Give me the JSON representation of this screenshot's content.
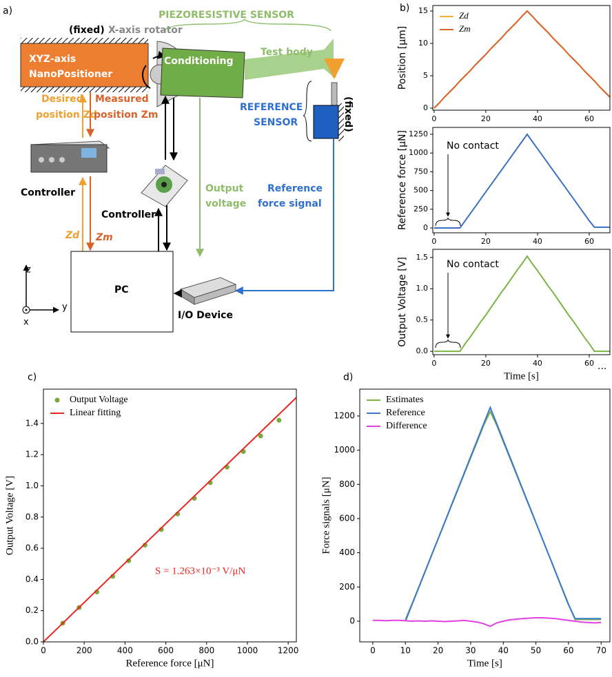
{
  "diagram": {
    "label": "a)",
    "fixed_top": "(fixed)",
    "rotator": "X-axis rotator",
    "sensor": "PIEZORESISTIVE SENSOR",
    "positioner": [
      "XYZ-axis",
      "NanoPositioner"
    ],
    "conditioning": "Conditioning",
    "test_body": "Test body",
    "reference_sensor": [
      "REFERENCE",
      "SENSOR"
    ],
    "fixed_right": "(fixed)",
    "desired": [
      "Desired",
      "position Zd"
    ],
    "measured": [
      "Measured",
      "position Zm"
    ],
    "controller_1": "Controller",
    "controller_2": "Controller",
    "output_voltage": [
      "Output",
      "voltage"
    ],
    "reference_signal": [
      "Reference",
      "force signal"
    ],
    "zd": "Zd",
    "zm": "Zm",
    "pc": "PC",
    "io_device": "I/O Device",
    "axes": [
      "z",
      "y",
      "x"
    ]
  },
  "chart_data": [
    {
      "type": "line",
      "label": "b)",
      "y_label": "Position [μm]",
      "legend": "upper left",
      "x": [
        0,
        2,
        4,
        6,
        8,
        10,
        12,
        14,
        16,
        18,
        20,
        22,
        24,
        26,
        28,
        30,
        32,
        34,
        36,
        38,
        40,
        42,
        44,
        46,
        48,
        50,
        52,
        54,
        56,
        58,
        60,
        62,
        64,
        66,
        68
      ],
      "series": [
        {
          "name": "Zd",
          "color": "#f0b030",
          "values": [
            0,
            0.8,
            1.7,
            2.5,
            3.3,
            4.2,
            5,
            5.8,
            6.7,
            7.5,
            8.3,
            9.2,
            10,
            10.8,
            11.7,
            12.5,
            13.3,
            14.2,
            15,
            14.2,
            13.3,
            12.5,
            11.7,
            10.8,
            10,
            9.2,
            8.3,
            7.5,
            6.7,
            5.8,
            5,
            4.2,
            3.3,
            2.5,
            1.7
          ]
        },
        {
          "name": "Zm",
          "color": "#d9622b",
          "values": [
            0,
            0.8,
            1.7,
            2.5,
            3.3,
            4.2,
            5,
            5.8,
            6.7,
            7.5,
            8.3,
            9.2,
            10,
            10.8,
            11.7,
            12.5,
            13.3,
            14.2,
            15,
            14.2,
            13.3,
            12.5,
            11.7,
            10.8,
            10,
            9.2,
            8.3,
            7.5,
            6.7,
            5.8,
            5,
            4.2,
            3.3,
            2.5,
            1.7
          ]
        }
      ],
      "xlim": [
        -0.5,
        68
      ],
      "ylim": [
        -0.32,
        15.85
      ],
      "xticks": [
        0,
        20,
        40,
        60
      ],
      "yticks": [
        0,
        5,
        10,
        15
      ]
    },
    {
      "type": "line",
      "y_label": "Reference force [μN]",
      "annotations": [
        "No contact"
      ],
      "x": [
        0,
        2,
        4,
        6,
        8,
        10,
        12,
        14,
        16,
        18,
        20,
        22,
        24,
        26,
        28,
        30,
        32,
        34,
        36,
        38,
        40,
        42,
        44,
        46,
        48,
        50,
        52,
        54,
        56,
        58,
        60,
        62,
        64,
        66,
        68
      ],
      "series": [
        {
          "color": "#3a6fc4",
          "values": [
            0,
            0,
            0,
            0,
            0,
            0,
            96,
            192,
            288,
            385,
            481,
            577,
            673,
            769,
            865,
            962,
            1058,
            1154,
            1250,
            1154,
            1058,
            962,
            865,
            769,
            673,
            577,
            481,
            385,
            288,
            192,
            96,
            10,
            10,
            10,
            10
          ]
        }
      ],
      "xlim": [
        -0.5,
        68
      ],
      "ylim": [
        -64,
        1342
      ],
      "xticks": [
        0,
        20,
        40,
        60
      ],
      "yticks": [
        0,
        250,
        500,
        750,
        1000,
        1250
      ]
    },
    {
      "type": "line",
      "y_label": "Output Voltage [V]",
      "x_label": "Time [s]",
      "annotations": [
        "No contact",
        "..."
      ],
      "x": [
        0,
        2,
        4,
        6,
        8,
        10,
        12,
        14,
        16,
        18,
        20,
        22,
        24,
        26,
        28,
        30,
        32,
        34,
        36,
        38,
        40,
        42,
        44,
        46,
        48,
        50,
        52,
        54,
        56,
        58,
        60,
        62,
        64,
        66,
        68
      ],
      "series": [
        {
          "color": "#7cb342",
          "values": [
            0,
            0,
            0,
            0,
            0,
            0,
            0.12,
            0.23,
            0.35,
            0.47,
            0.58,
            0.7,
            0.82,
            0.94,
            1.05,
            1.17,
            1.29,
            1.4,
            1.52,
            1.4,
            1.29,
            1.17,
            1.05,
            0.94,
            0.82,
            0.7,
            0.58,
            0.47,
            0.35,
            0.23,
            0.12,
            0,
            0,
            0,
            0
          ]
        }
      ],
      "xlim": [
        -0.5,
        68
      ],
      "ylim": [
        -0.054,
        1.63
      ],
      "xticks": [
        0,
        20,
        40,
        60
      ],
      "yticks": [
        {
          "value": 0,
          "label": "0.0"
        },
        {
          "value": 0.5,
          "label": "0.5"
        },
        {
          "value": 1,
          "label": "1.0"
        },
        {
          "value": 1.5,
          "label": "1.5"
        }
      ]
    },
    {
      "type": "scatter",
      "label": "c)",
      "y_label": "Output Voltage [V]",
      "x_label": "Reference force [μN]",
      "legend": "upper left",
      "annotations": [
        "S = 1.263×10⁻³ V/μN"
      ],
      "series": [
        {
          "name": "Output Voltage",
          "color": "#7aa83a",
          "x": [
            95,
            175,
            262,
            340,
            418,
            498,
            578,
            658,
            740,
            818,
            900,
            980,
            1065,
            1155
          ],
          "values": [
            0.12,
            0.22,
            0.32,
            0.42,
            0.52,
            0.62,
            0.72,
            0.82,
            0.92,
            1.02,
            1.12,
            1.22,
            1.32,
            1.42
          ]
        },
        {
          "name": "Linear fitting",
          "color": "#e8261f",
          "kind": "line",
          "x": [
            0,
            1240
          ],
          "values": [
            0,
            1.566
          ]
        }
      ],
      "xlim": [
        0,
        1240
      ],
      "ylim": [
        0,
        1.62
      ],
      "xticks": [
        0,
        200,
        400,
        600,
        800,
        1000,
        1200
      ],
      "yticks": [
        {
          "value": 0,
          "label": "0.0"
        },
        {
          "value": 0.2,
          "label": "0.2"
        },
        {
          "value": 0.4,
          "label": "0.4"
        },
        {
          "value": 0.6,
          "label": "0.6"
        },
        {
          "value": 0.8,
          "label": "0.8"
        },
        {
          "value": 1,
          "label": "1.0"
        },
        {
          "value": 1.2,
          "label": "1.2"
        },
        {
          "value": 1.4,
          "label": "1.4"
        }
      ]
    },
    {
      "type": "line",
      "label": "d)",
      "y_label": "Force signals [μN]",
      "x_label": "Time [s]",
      "legend": "upper left",
      "x": [
        0,
        2,
        4,
        6,
        8,
        10,
        12,
        14,
        16,
        18,
        20,
        22,
        24,
        26,
        28,
        30,
        32,
        34,
        36,
        38,
        40,
        42,
        44,
        46,
        48,
        50,
        52,
        54,
        56,
        58,
        60,
        62,
        64,
        66,
        68,
        70
      ],
      "series": [
        {
          "name": "Estimates",
          "color": "#7cb342",
          "values": [
            null,
            null,
            null,
            null,
            null,
            10,
            100,
            195,
            290,
            385,
            480,
            575,
            670,
            765,
            860,
            955,
            1050,
            1145,
            1225,
            1145,
            1050,
            955,
            860,
            765,
            670,
            575,
            480,
            385,
            290,
            195,
            100,
            10,
            10,
            10,
            10,
            10
          ]
        },
        {
          "name": "Reference",
          "color": "#3a78d0",
          "values": [
            null,
            null,
            null,
            null,
            null,
            0,
            96,
            192,
            288,
            385,
            481,
            577,
            673,
            769,
            865,
            962,
            1058,
            1154,
            1250,
            1154,
            1058,
            962,
            865,
            769,
            673,
            577,
            481,
            385,
            288,
            192,
            96,
            15,
            15,
            15,
            15,
            15
          ]
        },
        {
          "name": "Difference",
          "color": "#e040e0",
          "values": [
            5,
            5,
            3,
            5,
            5,
            3,
            0,
            2,
            0,
            2,
            0,
            -2,
            0,
            2,
            5,
            0,
            -5,
            -15,
            -30,
            -10,
            0,
            8,
            12,
            15,
            18,
            20,
            20,
            18,
            15,
            10,
            5,
            0,
            -5,
            -8,
            -10,
            -8
          ]
        }
      ],
      "xlim": [
        -4,
        72.7
      ],
      "ylim": [
        -121,
        1357
      ],
      "xticks": [
        0,
        10,
        20,
        30,
        40,
        50,
        60,
        70
      ],
      "yticks": [
        0,
        200,
        400,
        600,
        800,
        1000,
        1200
      ]
    }
  ]
}
